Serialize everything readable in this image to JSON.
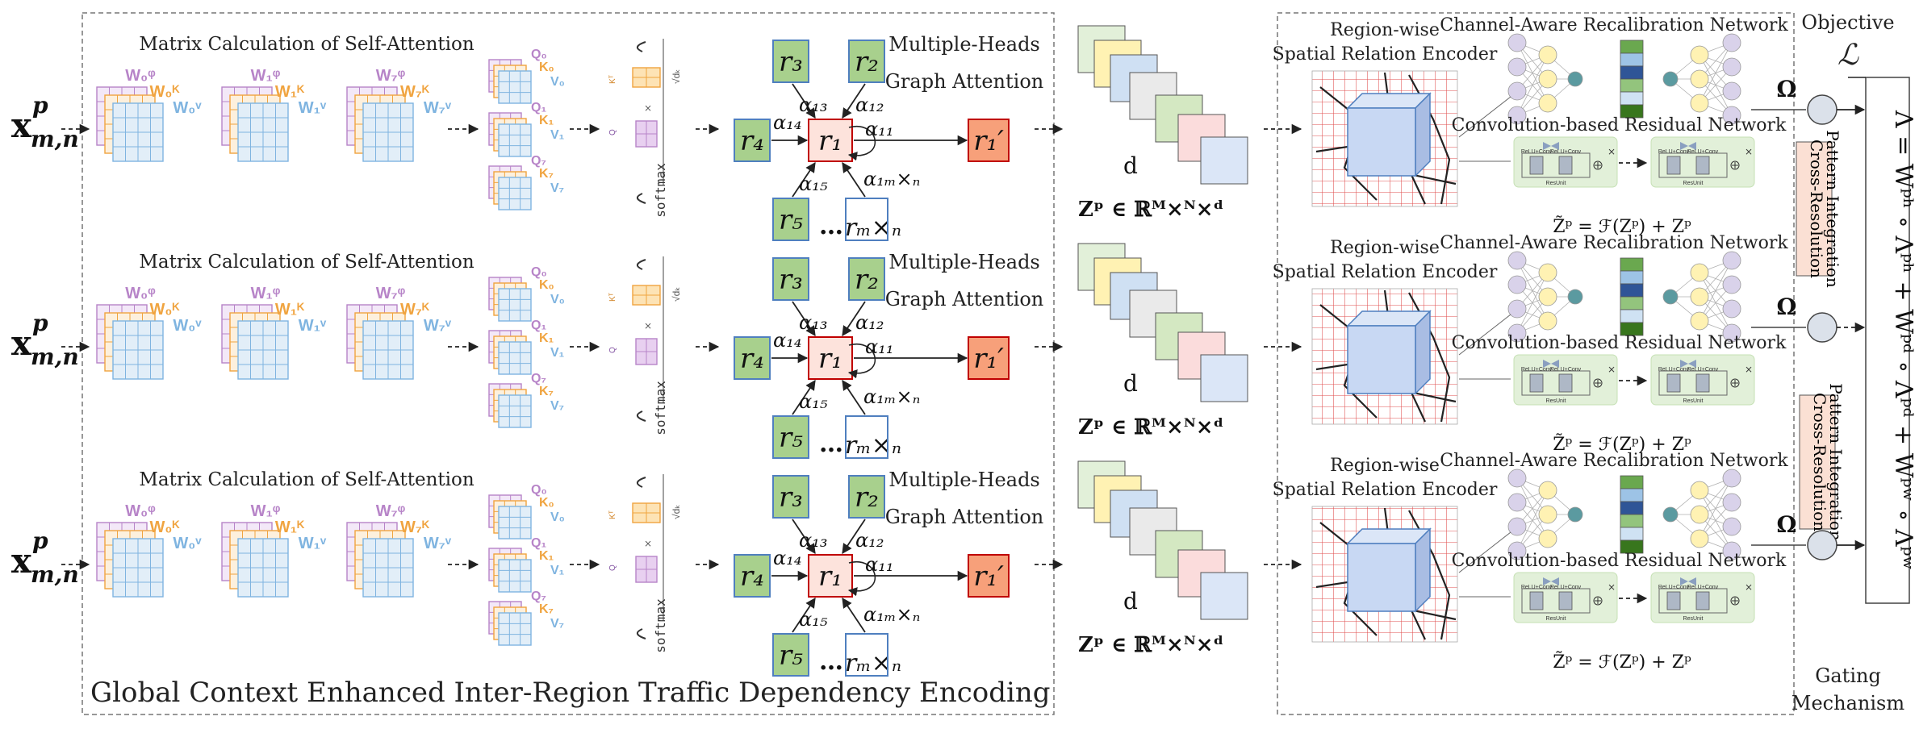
{
  "panels": {
    "left_caption": "Global Context Enhanced Inter-Region Traffic Dependency Encoding",
    "objective_word": "Objective",
    "objective_symbol": "ℒ",
    "gating_line1": "Gating",
    "gating_line2": "Mechanism"
  },
  "rows": [
    {
      "input_label": "x",
      "input_sup": "p",
      "input_sub": "m,n",
      "matrix_title": "Matrix Calculation of Self-Attention",
      "w_labels": [
        "W₀ᵠ",
        "W₀ᴷ",
        "W₀ᵛ",
        "W₁ᵠ",
        "W₁ᴷ",
        "W₁ᵛ",
        "W₇ᵠ",
        "W₇ᴷ",
        "W₇ᵛ"
      ],
      "qkv_labels": [
        "Q₀",
        "K₀",
        "V₀",
        "Q₁",
        "K₁",
        "V₁",
        "Q₇",
        "K₇",
        "V₇"
      ],
      "softmax_label": "softmax",
      "kt_label": "Kᵀ",
      "q_label": "Q",
      "sqrt_label": "√dₖ",
      "graph_title_line1": "Multiple-Heads",
      "graph_title_line2": "Graph Attention",
      "nodes": [
        "r₃",
        "r₂",
        "r₄",
        "r₁",
        "r₅",
        "rₘ×ₙ",
        "r₁′"
      ],
      "node_dots": "…",
      "alphas": [
        "α₁₃",
        "α₁₂",
        "α₁₄",
        "α₁₁",
        "α₁₅",
        "α₁ₘ×ₙ"
      ],
      "stack_d": "d",
      "z_formula": "Zᵖ ∈ ℝᴹ×ᴺ×ᵈ",
      "encoder_line1": "Region-wise",
      "encoder_line2": "Spatial Relation Encoder",
      "channel_title": "Channel-Aware Recalibration Network",
      "conv_title": "Convolution-based Residual Network",
      "relu_label": "ReLU+Conv",
      "resunit_label": "ResUnit",
      "res_formula": "Z̃ᵖ = ℱ(Zᵖ) + Zᵖ",
      "omega": "Ω"
    },
    {
      "input_label": "x",
      "input_sup": "p",
      "input_sub": "m,n",
      "matrix_title": "Matrix Calculation of Self-Attention",
      "w_labels": [
        "W₀ᵠ",
        "W₀ᴷ",
        "W₀ᵛ",
        "W₁ᵠ",
        "W₁ᴷ",
        "W₁ᵛ",
        "W₇ᵠ",
        "W₇ᴷ",
        "W₇ᵛ"
      ],
      "qkv_labels": [
        "Q₀",
        "K₀",
        "V₀",
        "Q₁",
        "K₁",
        "V₁",
        "Q₇",
        "K₇",
        "V₇"
      ],
      "softmax_label": "softmax",
      "kt_label": "Kᵀ",
      "q_label": "Q",
      "sqrt_label": "√dₖ",
      "graph_title_line1": "Multiple-Heads",
      "graph_title_line2": "Graph Attention",
      "nodes": [
        "r₃",
        "r₂",
        "r₄",
        "r₁",
        "r₅",
        "rₘ×ₙ",
        "r₁′"
      ],
      "node_dots": "…",
      "alphas": [
        "α₁₃",
        "α₁₂",
        "α₁₄",
        "α₁₁",
        "α₁₅",
        "α₁ₘ×ₙ"
      ],
      "stack_d": "d",
      "z_formula": "Zᵖ ∈ ℝᴹ×ᴺ×ᵈ",
      "encoder_line1": "Region-wise",
      "encoder_line2": "Spatial Relation Encoder",
      "channel_title": "Channel-Aware Recalibration Network",
      "conv_title": "Convolution-based Residual Network",
      "relu_label": "ReLU+Conv",
      "resunit_label": "ResUnit",
      "res_formula": "Z̃ᵖ = ℱ(Zᵖ) + Zᵖ",
      "omega": "Ω"
    },
    {
      "input_label": "x",
      "input_sup": "p",
      "input_sub": "m,n",
      "matrix_title": "Matrix Calculation of Self-Attention",
      "w_labels": [
        "W₀ᵠ",
        "W₀ᴷ",
        "W₀ᵛ",
        "W₁ᵠ",
        "W₁ᴷ",
        "W₁ᵛ",
        "W₇ᵠ",
        "W₇ᴷ",
        "W₇ᵛ"
      ],
      "qkv_labels": [
        "Q₀",
        "K₀",
        "V₀",
        "Q₁",
        "K₁",
        "V₁",
        "Q₇",
        "K₇",
        "V₇"
      ],
      "softmax_label": "softmax",
      "kt_label": "Kᵀ",
      "q_label": "Q",
      "sqrt_label": "√dₖ",
      "graph_title_line1": "Multiple-Heads",
      "graph_title_line2": "Graph Attention",
      "nodes": [
        "r₃",
        "r₂",
        "r₄",
        "r₁",
        "r₅",
        "rₘ×ₙ",
        "r₁′"
      ],
      "node_dots": "…",
      "alphas": [
        "α₁₃",
        "α₁₂",
        "α₁₄",
        "α₁₁",
        "α₁₅",
        "α₁ₘ×ₙ"
      ],
      "stack_d": "d",
      "z_formula": "Zᵖ ∈ ℝᴹ×ᴺ×ᵈ",
      "encoder_line1": "Region-wise",
      "encoder_line2": "Spatial Relation Encoder",
      "channel_title": "Channel-Aware Recalibration Network",
      "conv_title": "Convolution-based Residual Network",
      "relu_label": "ReLU+Conv",
      "resunit_label": "ResUnit",
      "res_formula": "Z̃ᵖ = ℱ(Zᵖ) + Zᵖ",
      "omega": "Ω"
    }
  ],
  "cross_resolution_line1": "Cross-Resolution",
  "cross_resolution_line2": "Pattern Integration",
  "lambda_formula": "Λ = Wᵖʰ ∘ Λᵖʰ + Wᵖᵈ ∘ Λᵖᵈ + Wᵖʷ ∘ Λᵖʷ",
  "colors": {
    "purple": "#b784c8",
    "orange": "#f0a440",
    "blue": "#7fb4e0",
    "node_green": "#a8d08d",
    "node_border": "#4f7fbf",
    "r1_fill": "#fde3dc",
    "r1_border": "#c00000",
    "r1p_fill": "#f7a07a",
    "mint": "#e2f0d9",
    "salmon": "#fbe0d4"
  }
}
